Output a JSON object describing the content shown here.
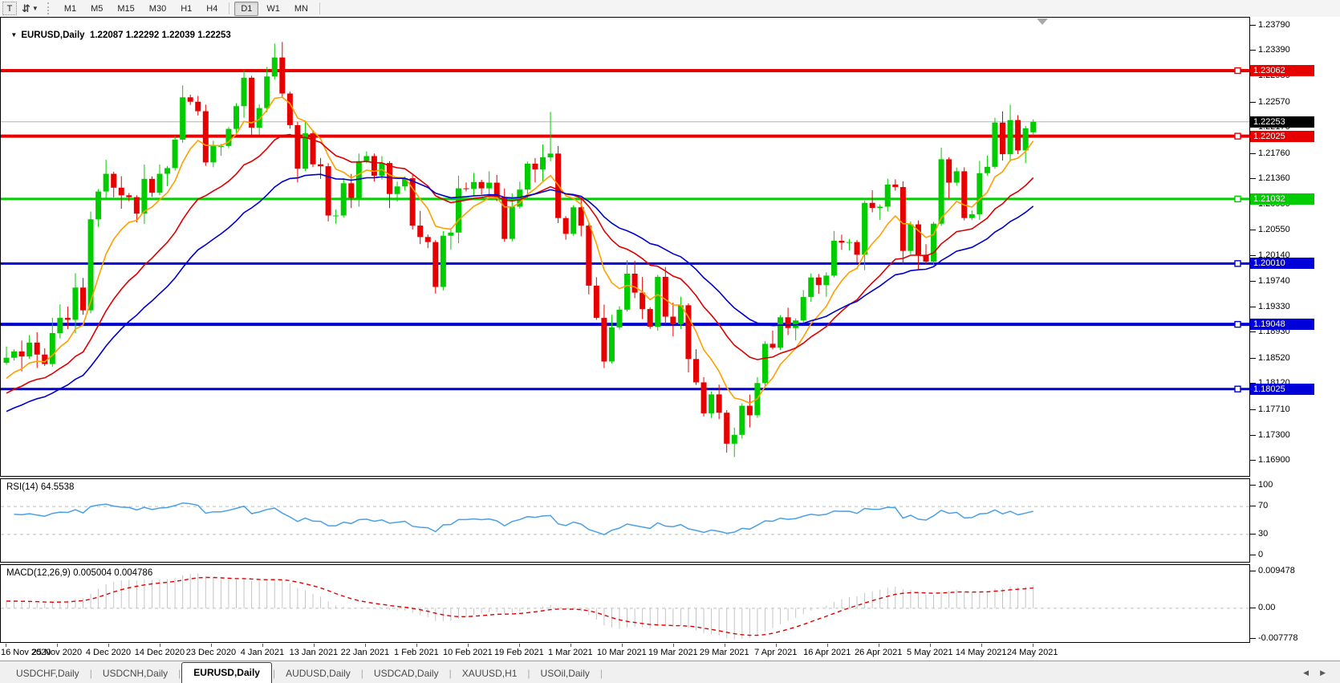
{
  "toolbar": {
    "text_tool_label": "T",
    "symbols_tool": "arrows-with-dropdown",
    "timeframes": [
      "M1",
      "M5",
      "M15",
      "M30",
      "H1",
      "H4",
      "D1",
      "W1",
      "MN"
    ],
    "active_timeframe": "D1"
  },
  "chart_header": {
    "symbol_label": "EURUSD,Daily",
    "ohlc_text": "1.22087 1.22292 1.22039 1.22253",
    "open": "1.22087",
    "high": "1.22292",
    "low": "1.22039",
    "close": "1.22253"
  },
  "price_axis": {
    "ticks": [
      "1.23790",
      "1.23390",
      "1.22980",
      "1.22570",
      "1.22170",
      "1.21760",
      "1.21360",
      "1.20950",
      "1.20550",
      "1.20140",
      "1.19740",
      "1.19330",
      "1.18930",
      "1.18520",
      "1.18120",
      "1.17710",
      "1.17300",
      "1.16900"
    ],
    "current_price_label": "1.22253",
    "current_price_value": 1.22253,
    "current_tag_bg": "#000000"
  },
  "hlines": [
    {
      "label": "1.23062",
      "value": 1.23062,
      "color": "#e60000",
      "thickness": 4
    },
    {
      "label": "1.22025",
      "value": 1.22025,
      "color": "#e60000",
      "thickness": 4
    },
    {
      "label": "1.21032",
      "value": 1.21032,
      "color": "#00cc00",
      "thickness": 3
    },
    {
      "label": "1.20010",
      "value": 1.2001,
      "color": "#0000d8",
      "thickness": 3
    },
    {
      "label": "1.19048",
      "value": 1.19048,
      "color": "#0000d8",
      "thickness": 4
    },
    {
      "label": "1.18025",
      "value": 1.18025,
      "color": "#0000d8",
      "thickness": 3
    }
  ],
  "rsi_panel": {
    "label": "RSI(14) 64.5538",
    "ticks": [
      {
        "label": "100",
        "value": 100
      },
      {
        "label": "70",
        "value": 70
      },
      {
        "label": "30",
        "value": 30
      },
      {
        "label": "0",
        "value": 0
      }
    ],
    "level_lines": [
      70,
      30
    ]
  },
  "macd_panel": {
    "label": "MACD(12,26,9) 0.005004 0.004786",
    "ticks": [
      {
        "label": "0.009478",
        "value": 0.009478
      },
      {
        "label": "0.00",
        "value": 0
      },
      {
        "label": "-0.007778",
        "value": -0.007778
      }
    ],
    "range": {
      "max": 0.01109,
      "min": -0.00867
    }
  },
  "tabs": {
    "items": [
      "USDCHF,Daily",
      "USDCNH,Daily",
      "EURUSD,Daily",
      "AUDUSD,Daily",
      "USDCAD,Daily",
      "XAUUSD,H1",
      "USOil,Daily"
    ],
    "active": "EURUSD,Daily",
    "nav_left": "◀",
    "nav_right": "▶"
  },
  "colors": {
    "bull": "#00cc00",
    "bear": "#e60000",
    "ma_fast": "#ff9f00",
    "ma_mid": "#dd0000",
    "ma_slow": "#0000cc",
    "rsi_line": "#4aa0e8",
    "macd_hist": "#c4c4c4",
    "macd_signal": "#e00000",
    "level_dash": "#bdbdbd",
    "current_price_line": "#b4b4b4"
  },
  "chart_data": {
    "type": "candlestick",
    "symbol": "EURUSD",
    "timeframe": "Daily",
    "price_range": [
      1.1665,
      1.239
    ],
    "date_ticks": [
      "16 Nov 2020",
      "25 Nov 2020",
      "4 Dec 2020",
      "14 Dec 2020",
      "23 Dec 2020",
      "4 Jan 2021",
      "13 Jan 2021",
      "22 Jan 2021",
      "1 Feb 2021",
      "10 Feb 2021",
      "19 Feb 2021",
      "1 Mar 2021",
      "10 Mar 2021",
      "19 Mar 2021",
      "29 Mar 2021",
      "7 Apr 2021",
      "16 Apr 2021",
      "26 Apr 2021",
      "5 May 2021",
      "14 May 2021",
      "24 May 2021"
    ],
    "closes": [
      1.1852,
      1.1862,
      1.1854,
      1.1876,
      1.1857,
      1.1842,
      1.1891,
      1.1915,
      1.1912,
      1.1963,
      1.1927,
      1.2071,
      1.2115,
      1.2143,
      1.2121,
      1.2109,
      1.2106,
      1.208,
      1.2135,
      1.2113,
      1.2143,
      1.2152,
      1.2197,
      1.2264,
      1.2257,
      1.2242,
      1.2161,
      1.2187,
      1.2187,
      1.2214,
      1.225,
      1.2295,
      1.2216,
      1.2247,
      1.2297,
      1.2327,
      1.227,
      1.222,
      1.2151,
      1.2207,
      1.2158,
      1.2155,
      1.2077,
      1.2077,
      1.2128,
      1.2105,
      1.2163,
      1.2171,
      1.214,
      1.216,
      1.2111,
      1.2123,
      1.2136,
      1.2061,
      1.2043,
      1.2035,
      1.1964,
      1.2045,
      1.205,
      1.212,
      1.2119,
      1.213,
      1.212,
      1.2129,
      1.2106,
      1.204,
      1.2091,
      1.2118,
      1.2159,
      1.215,
      1.2169,
      1.2175,
      1.2073,
      1.2048,
      1.209,
      1.2061,
      1.1966,
      1.1915,
      1.1846,
      1.19,
      1.1928,
      1.1985,
      1.1955,
      1.1929,
      1.1901,
      1.198,
      1.1917,
      1.1905,
      1.1935,
      1.185,
      1.1813,
      1.1764,
      1.1794,
      1.1765,
      1.1716,
      1.173,
      1.1776,
      1.1761,
      1.1812,
      1.1874,
      1.1868,
      1.1916,
      1.1899,
      1.1911,
      1.1948,
      1.1979,
      1.1967,
      1.1982,
      1.2037,
      1.2034,
      1.2035,
      1.2015,
      1.2097,
      1.2089,
      1.2091,
      1.2126,
      1.2122,
      1.2021,
      1.2063,
      1.2015,
      1.2004,
      1.2064,
      1.2166,
      1.2129,
      1.2147,
      1.2073,
      1.2079,
      1.2144,
      1.2154,
      1.2224,
      1.2174,
      1.2228,
      1.218,
      1.2215,
      1.2253
    ],
    "current_bar": {
      "open": 1.22087,
      "high": 1.22292,
      "low": 1.22039,
      "close": 1.22253
    },
    "horizontal_levels": [
      1.23062,
      1.22025,
      1.21032,
      1.2001,
      1.19048,
      1.18025
    ],
    "ma_overlays": [
      {
        "name": "fast-ma",
        "type": "ema",
        "period": 8,
        "color": "#ff9f00"
      },
      {
        "name": "mid-ma",
        "type": "ema",
        "period": 20,
        "color": "#dd0000"
      },
      {
        "name": "slow-ma",
        "type": "ema",
        "period": 34,
        "color": "#0000cc"
      }
    ],
    "indicators": [
      {
        "name": "RSI",
        "period": 14,
        "last_value": 64.5538,
        "scale": [
          0,
          100
        ],
        "levels": [
          30,
          70
        ]
      },
      {
        "name": "MACD",
        "fast": 12,
        "slow": 26,
        "signal": 9,
        "last_macd": 0.005004,
        "last_signal": 0.004786,
        "scale_max": 0.009478,
        "scale_min": -0.007778
      }
    ]
  }
}
